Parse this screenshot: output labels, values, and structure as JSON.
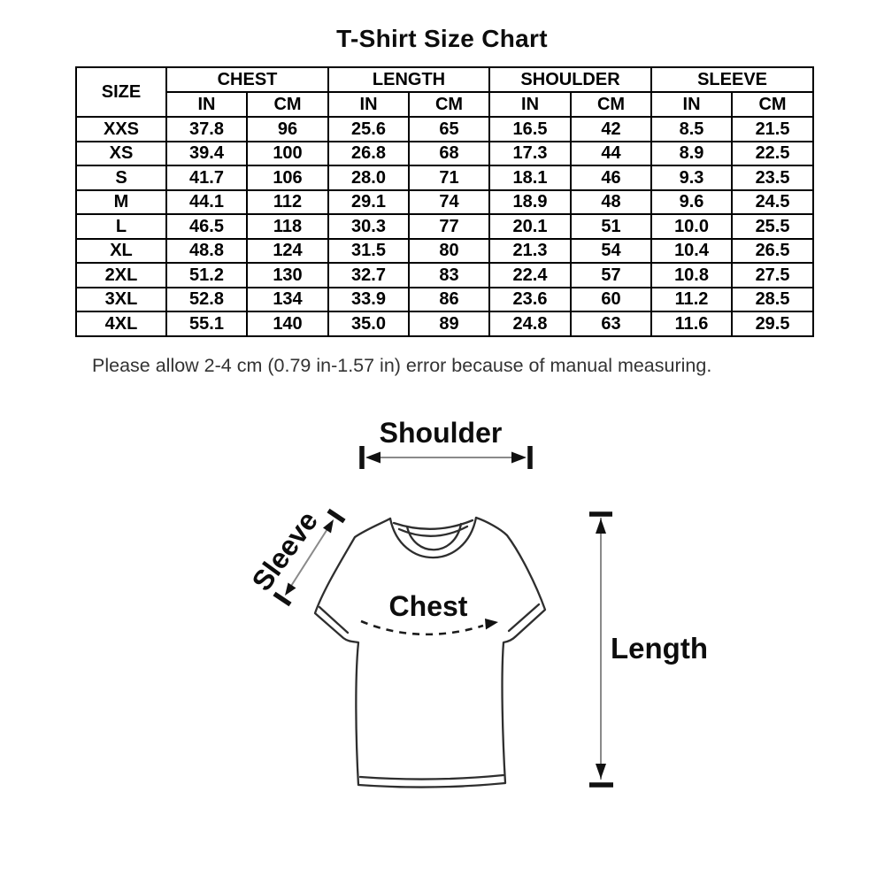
{
  "title": "T-Shirt Size Chart",
  "note": "Please allow 2-4 cm (0.79 in-1.57 in) error because of manual measuring.",
  "diagram": {
    "shoulder_label": "Shoulder",
    "sleeve_label": "Sleeve",
    "chest_label": "Chest",
    "length_label": "Length"
  },
  "colors": {
    "text": "#0d0d0d",
    "drawing_line": "#2e2e2e",
    "arrow_shaft": "#8a8a8a",
    "arrow_bar": "#111111",
    "table_border": "#000000",
    "note_text": "#333333",
    "background": "#ffffff"
  },
  "chart_data": {
    "type": "table",
    "title": "T-Shirt Size Chart",
    "size_header": "SIZE",
    "column_groups": [
      "CHEST",
      "LENGTH",
      "SHOULDER",
      "SLEEVE"
    ],
    "unit_headers": [
      "IN",
      "CM",
      "IN",
      "CM",
      "IN",
      "CM",
      "IN",
      "CM"
    ],
    "columns": [
      "SIZE",
      "CHEST IN",
      "CHEST CM",
      "LENGTH IN",
      "LENGTH CM",
      "SHOULDER IN",
      "SHOULDER CM",
      "SLEEVE IN",
      "SLEEVE CM"
    ],
    "rows": [
      {
        "size": "XXS",
        "values": [
          "37.8",
          "96",
          "25.6",
          "65",
          "16.5",
          "42",
          "8.5",
          "21.5"
        ]
      },
      {
        "size": "XS",
        "values": [
          "39.4",
          "100",
          "26.8",
          "68",
          "17.3",
          "44",
          "8.9",
          "22.5"
        ]
      },
      {
        "size": "S",
        "values": [
          "41.7",
          "106",
          "28.0",
          "71",
          "18.1",
          "46",
          "9.3",
          "23.5"
        ]
      },
      {
        "size": "M",
        "values": [
          "44.1",
          "112",
          "29.1",
          "74",
          "18.9",
          "48",
          "9.6",
          "24.5"
        ]
      },
      {
        "size": "L",
        "values": [
          "46.5",
          "118",
          "30.3",
          "77",
          "20.1",
          "51",
          "10.0",
          "25.5"
        ]
      },
      {
        "size": "XL",
        "values": [
          "48.8",
          "124",
          "31.5",
          "80",
          "21.3",
          "54",
          "10.4",
          "26.5"
        ]
      },
      {
        "size": "2XL",
        "values": [
          "51.2",
          "130",
          "32.7",
          "83",
          "22.4",
          "57",
          "10.8",
          "27.5"
        ]
      },
      {
        "size": "3XL",
        "values": [
          "52.8",
          "134",
          "33.9",
          "86",
          "23.6",
          "60",
          "11.2",
          "28.5"
        ]
      },
      {
        "size": "4XL",
        "values": [
          "55.1",
          "140",
          "35.0",
          "89",
          "24.8",
          "63",
          "11.6",
          "29.5"
        ]
      }
    ],
    "note": "Please allow 2-4 cm (0.79 in-1.57 in) error because of manual measuring."
  }
}
